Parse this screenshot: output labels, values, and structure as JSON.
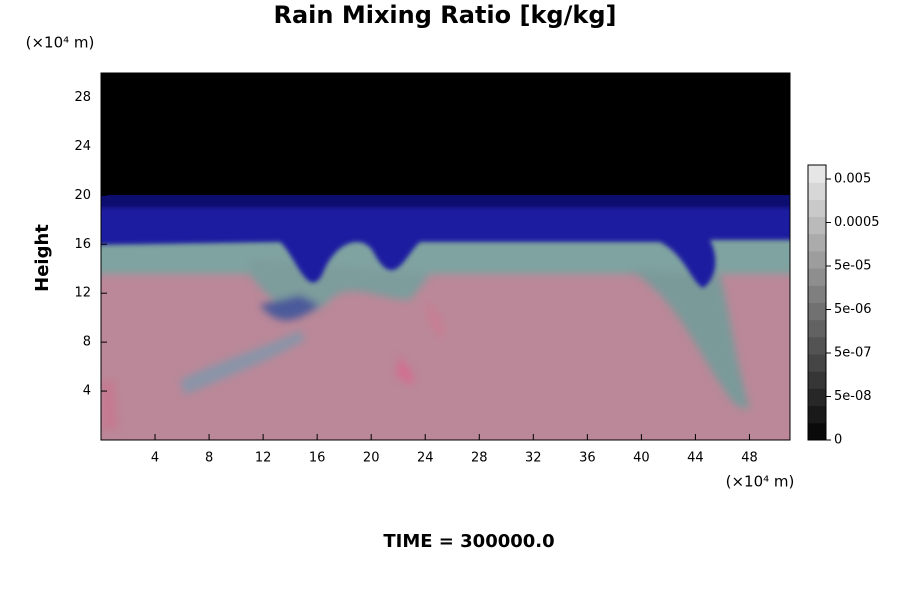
{
  "chart_data": {
    "type": "contour",
    "title": "Rain Mixing Ratio [kg/kg]",
    "ylabel": "Height",
    "xunit": "(×10⁴ m)",
    "yunit": "(×10⁴ m)",
    "footer": "TIME = 300000.0",
    "xlim": [
      0,
      51
    ],
    "xticks": [
      4,
      8,
      12,
      16,
      20,
      24,
      28,
      32,
      36,
      40,
      44,
      48
    ],
    "ylim": [
      0,
      30
    ],
    "yticks": [
      4,
      8,
      12,
      16,
      20,
      24,
      28
    ],
    "colorbar_ticks": [
      0,
      {
        "value": 5e-08,
        "label": "5e-08"
      },
      {
        "value": 5e-07,
        "label": "5e-07"
      },
      {
        "value": 5e-06,
        "label": "5e-06"
      },
      {
        "value": 5e-05,
        "label": "5e-05"
      },
      0.0005,
      0.005
    ]
  }
}
